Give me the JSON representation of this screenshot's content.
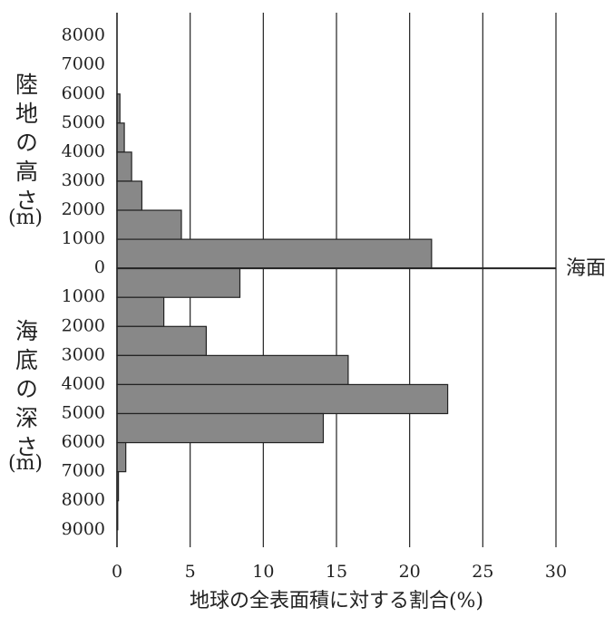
{
  "chart_data": {
    "type": "histogram",
    "orientation": "horizontal",
    "xlabel": "地球の全表面積に対する割合(%)",
    "y_label_land": "陸地の高さ",
    "y_label_land_unit": "(m)",
    "y_label_sea": "海底の深さ",
    "y_label_sea_unit": "(m)",
    "sea_level_label": "海面",
    "bins": [
      6000,
      5000,
      4000,
      3000,
      2000,
      1000,
      0,
      -1000,
      -2000,
      -3000,
      -4000,
      -5000,
      -6000,
      -7000,
      -8000,
      -9000
    ],
    "values": [
      0.2,
      0.5,
      1.0,
      1.7,
      4.4,
      21.5,
      8.4,
      3.2,
      6.1,
      15.8,
      22.6,
      14.1,
      0.6,
      0.1,
      0.05
    ],
    "color": "#888888",
    "xlim": [
      0,
      30
    ],
    "xticks": [
      0,
      5,
      10,
      15,
      20,
      25,
      30
    ],
    "ylim": [
      -9600,
      8800
    ],
    "yticks": [
      8000,
      7000,
      6000,
      5000,
      4000,
      3000,
      2000,
      1000,
      0,
      {
        "value": -1000,
        "label": "1000"
      },
      {
        "value": -2000,
        "label": "2000"
      },
      {
        "value": -3000,
        "label": "3000"
      },
      {
        "value": -4000,
        "label": "4000"
      },
      {
        "value": -5000,
        "label": "5000"
      },
      {
        "value": -6000,
        "label": "6000"
      },
      {
        "value": -7000,
        "label": "7000"
      },
      {
        "value": -8000,
        "label": "8000"
      },
      {
        "value": -9000,
        "label": "9000"
      }
    ],
    "grid": true
  }
}
